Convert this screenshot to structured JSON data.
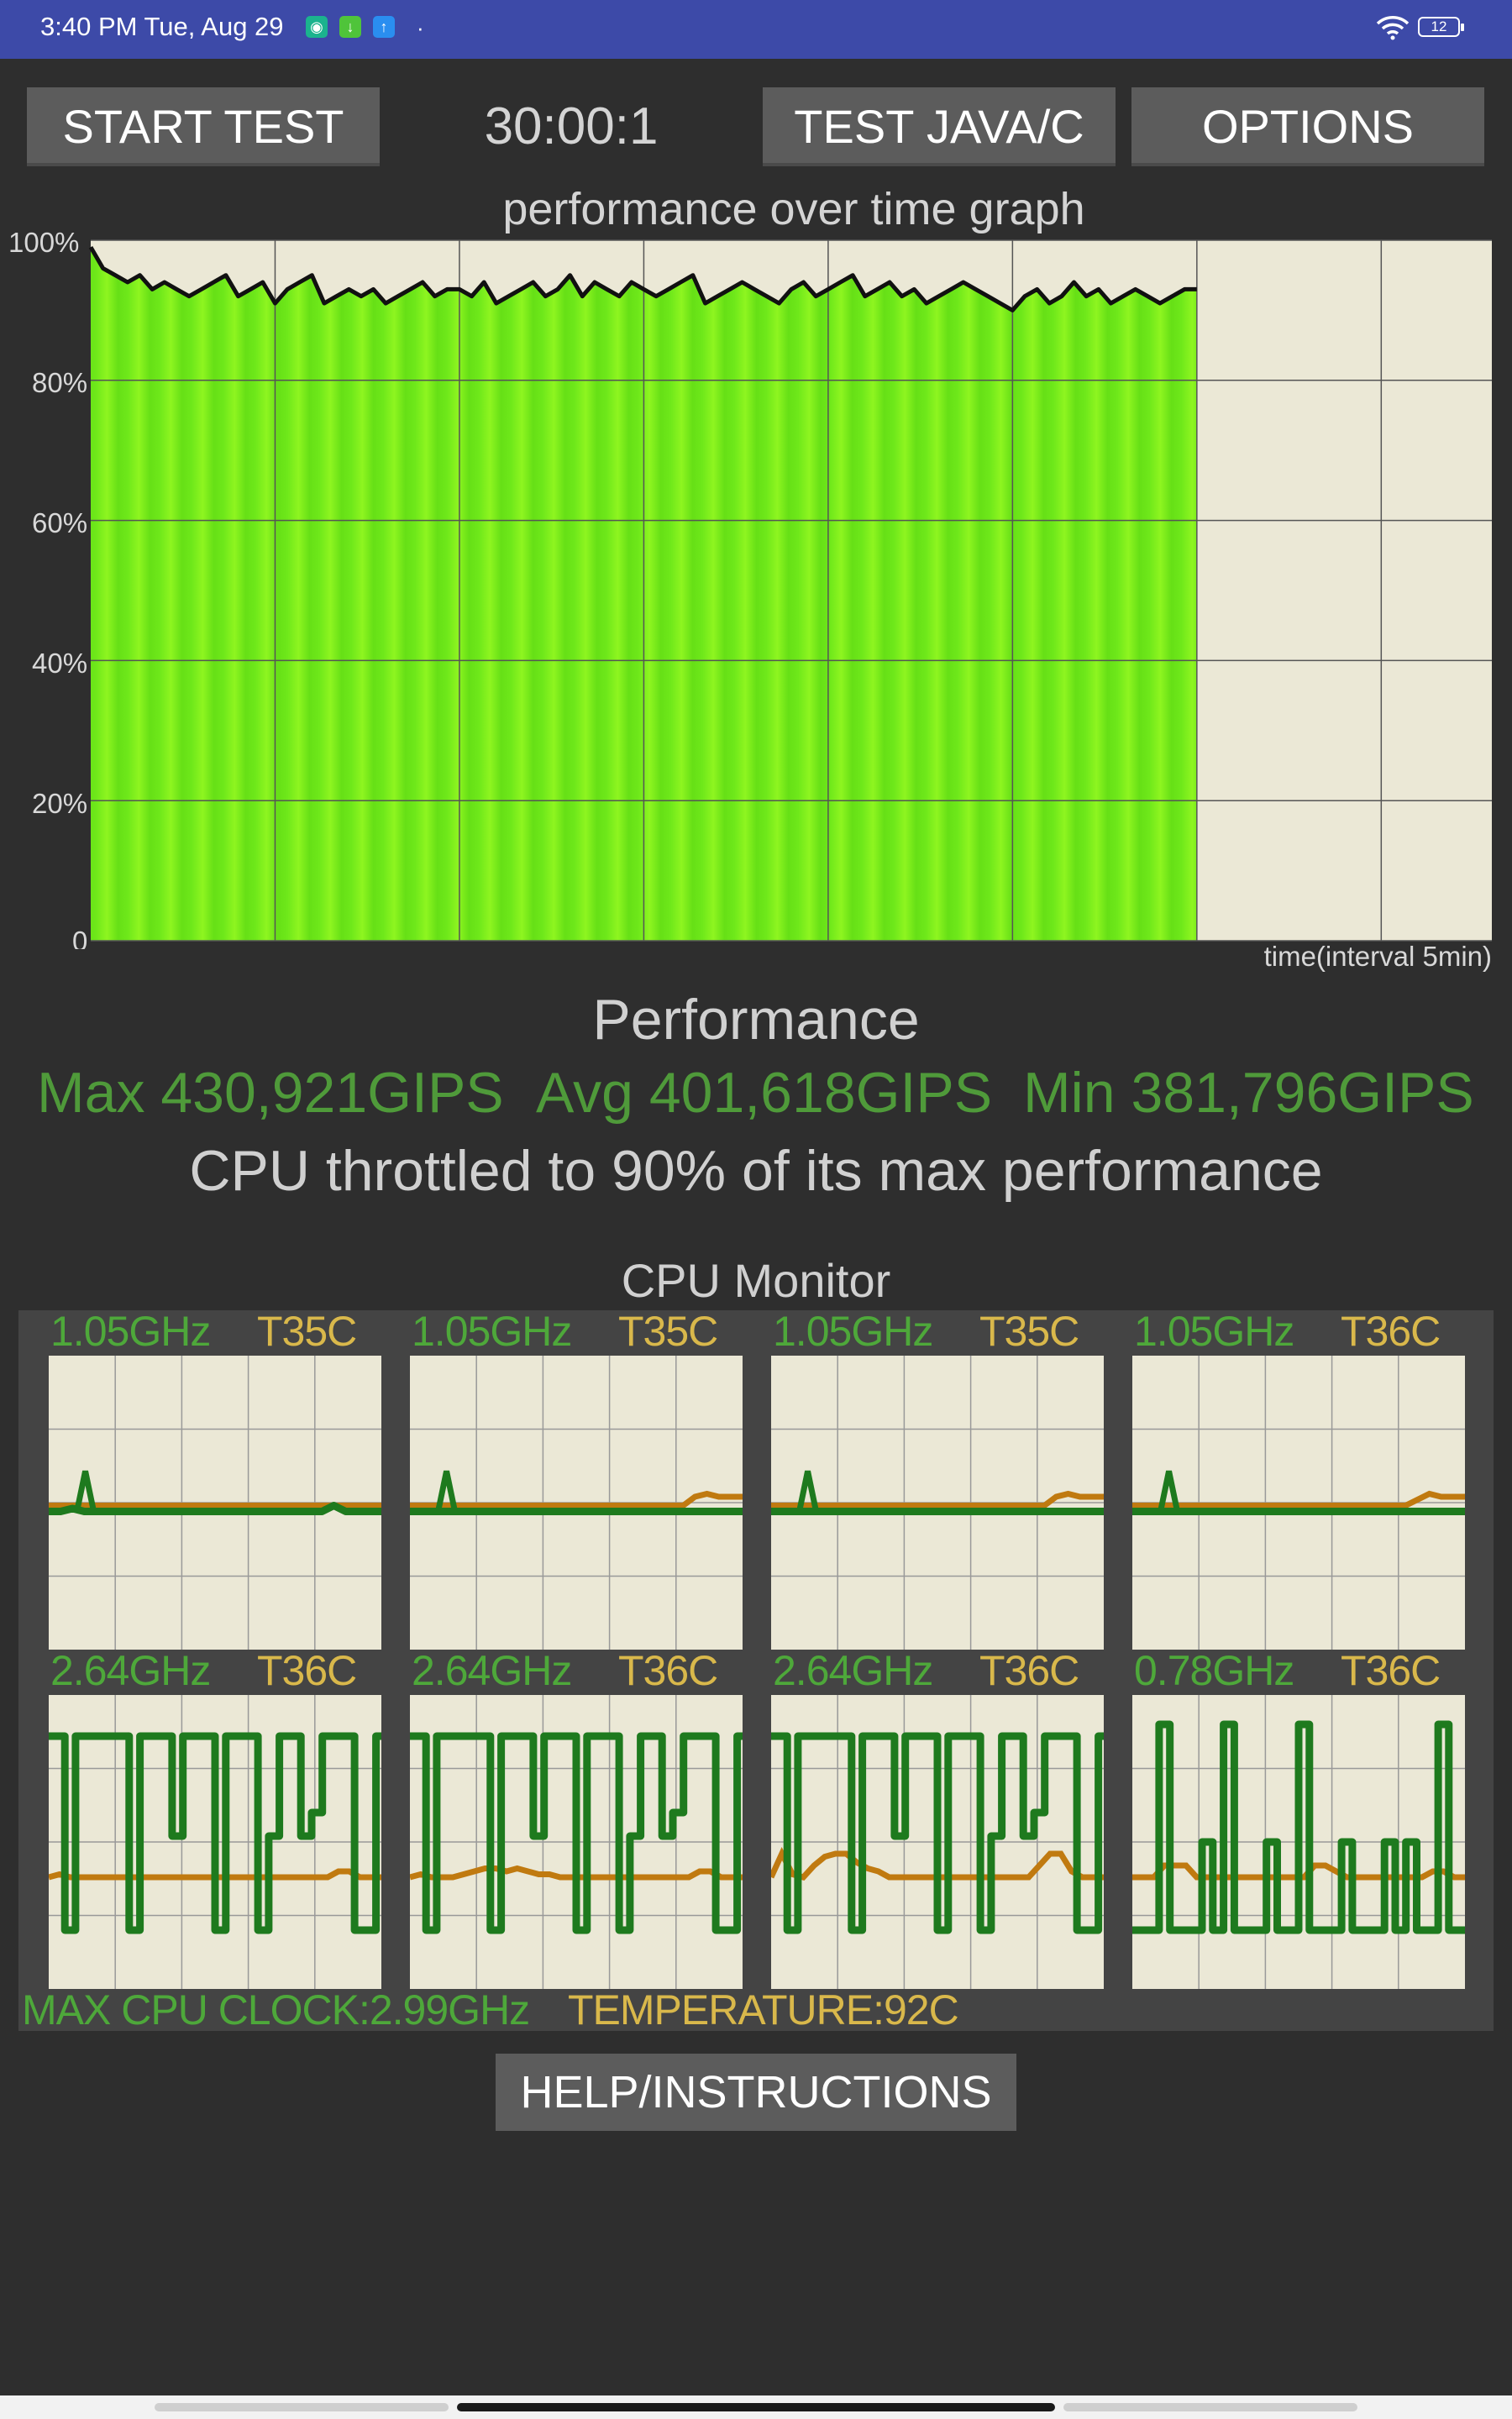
{
  "status_bar": {
    "time": "3:40 PM Tue, Aug 29",
    "dot": "·",
    "battery": "12",
    "icons": [
      "shield-app-icon",
      "download-app-icon",
      "upload-app-icon",
      "wifi-icon",
      "battery-icon"
    ]
  },
  "toolbar": {
    "start_label": "START TEST",
    "timer": "30:00:1",
    "test_label": "TEST JAVA/C",
    "options_label": "OPTIONS"
  },
  "graph": {
    "title": "performance over time graph",
    "x_label": "time(interval 5min)",
    "y_ticks": [
      "100%",
      "80%",
      "60%",
      "40%",
      "20%",
      "0"
    ]
  },
  "chart_data": {
    "type": "area",
    "title": "performance over time graph",
    "xlabel": "time(interval 5min)",
    "ylabel": "",
    "ylim": [
      0,
      100
    ],
    "y_ticks": [
      0,
      20,
      40,
      60,
      80,
      100
    ],
    "x_unit_minutes": 5,
    "x_range_intervals": [
      0,
      7.6
    ],
    "grid": true,
    "fill_color": "#7cf21a",
    "line_color": "#111111",
    "series": [
      {
        "values": [
          99,
          96,
          95,
          94,
          95,
          93,
          94,
          93,
          92,
          93,
          94,
          95,
          92,
          93,
          94,
          91,
          93,
          94,
          95,
          91,
          92,
          93,
          92,
          93,
          91,
          92,
          93,
          94,
          92,
          93,
          93,
          92,
          94,
          91,
          92,
          93,
          94,
          92,
          93,
          95,
          92,
          94,
          93,
          92,
          94,
          93,
          92,
          93,
          94,
          95,
          91,
          92,
          93,
          94,
          93,
          92,
          91,
          93,
          94,
          92,
          93,
          94,
          95,
          92,
          93,
          94,
          92,
          93,
          91,
          92,
          93,
          94,
          93,
          92,
          91,
          90,
          92,
          93,
          91,
          92,
          94,
          92,
          93,
          91,
          92,
          93,
          92,
          91,
          92,
          93,
          93
        ]
      }
    ]
  },
  "performance": {
    "heading": "Performance",
    "max": "Max 430,921GIPS",
    "avg": "Avg 401,618GIPS",
    "min": "Min 381,796GIPS",
    "throttle": "CPU throttled to 90% of its max performance"
  },
  "cpu_monitor": {
    "title": "CPU Monitor",
    "freq_color": "#1e7a1e",
    "temp_color": "#c07a10",
    "cores": [
      {
        "freq": "1.05GHz",
        "temp": "T35C",
        "freq_trace": [
          0.47,
          0.47,
          0.48,
          0.47,
          0.47,
          0.47,
          0.47,
          0.47,
          0.47,
          0.47,
          0.47,
          0.47,
          0.47,
          0.47,
          0.47,
          0.47,
          0.47,
          0.47,
          0.47,
          0.47,
          0.47,
          0.47,
          0.47,
          0.47,
          0.49,
          0.47,
          0.47,
          0.47,
          0.47
        ],
        "temp_trace": [
          0.49,
          0.49,
          0.49,
          0.49,
          0.49,
          0.49,
          0.49,
          0.49,
          0.49,
          0.49,
          0.49,
          0.49,
          0.49,
          0.49,
          0.49,
          0.49,
          0.49,
          0.49,
          0.49,
          0.49,
          0.49,
          0.49,
          0.49,
          0.49,
          0.49,
          0.49,
          0.49,
          0.49,
          0.49
        ],
        "spike_at": 0.11
      },
      {
        "freq": "1.05GHz",
        "temp": "T35C",
        "freq_trace": [
          0.47,
          0.47,
          0.47,
          0.47,
          0.47,
          0.47,
          0.47,
          0.47,
          0.47,
          0.47,
          0.47,
          0.47,
          0.47,
          0.47,
          0.47,
          0.47,
          0.47,
          0.47,
          0.47,
          0.47,
          0.47,
          0.47,
          0.47,
          0.47,
          0.47,
          0.47,
          0.47,
          0.47,
          0.47
        ],
        "temp_trace": [
          0.49,
          0.49,
          0.49,
          0.49,
          0.49,
          0.49,
          0.49,
          0.49,
          0.49,
          0.49,
          0.49,
          0.49,
          0.49,
          0.49,
          0.49,
          0.49,
          0.49,
          0.49,
          0.49,
          0.49,
          0.49,
          0.49,
          0.49,
          0.49,
          0.52,
          0.53,
          0.52,
          0.52,
          0.52
        ],
        "spike_at": 0.11
      },
      {
        "freq": "1.05GHz",
        "temp": "T35C",
        "freq_trace": [
          0.47,
          0.47,
          0.47,
          0.47,
          0.47,
          0.47,
          0.47,
          0.47,
          0.47,
          0.47,
          0.47,
          0.47,
          0.47,
          0.47,
          0.47,
          0.47,
          0.47,
          0.47,
          0.47,
          0.47,
          0.47,
          0.47,
          0.47,
          0.47,
          0.47,
          0.47,
          0.47,
          0.47,
          0.47
        ],
        "temp_trace": [
          0.49,
          0.49,
          0.49,
          0.49,
          0.49,
          0.49,
          0.49,
          0.49,
          0.49,
          0.49,
          0.49,
          0.49,
          0.49,
          0.49,
          0.49,
          0.49,
          0.49,
          0.49,
          0.49,
          0.49,
          0.49,
          0.49,
          0.49,
          0.49,
          0.52,
          0.53,
          0.52,
          0.52,
          0.52
        ],
        "spike_at": 0.11
      },
      {
        "freq": "1.05GHz",
        "temp": "T36C",
        "freq_trace": [
          0.47,
          0.47,
          0.47,
          0.47,
          0.47,
          0.47,
          0.47,
          0.47,
          0.47,
          0.47,
          0.47,
          0.47,
          0.47,
          0.47,
          0.47,
          0.47,
          0.47,
          0.47,
          0.47,
          0.47,
          0.47,
          0.47,
          0.47,
          0.47,
          0.47,
          0.47,
          0.47,
          0.47,
          0.47
        ],
        "temp_trace": [
          0.49,
          0.49,
          0.49,
          0.49,
          0.49,
          0.49,
          0.49,
          0.49,
          0.49,
          0.49,
          0.49,
          0.49,
          0.49,
          0.49,
          0.49,
          0.49,
          0.49,
          0.49,
          0.49,
          0.49,
          0.49,
          0.49,
          0.49,
          0.49,
          0.51,
          0.53,
          0.52,
          0.52,
          0.52
        ],
        "spike_at": 0.11
      },
      {
        "freq": "2.64GHz",
        "temp": "T36C",
        "freq_trace": [
          0.86,
          0.86,
          0.2,
          0.86,
          0.86,
          0.86,
          0.86,
          0.86,
          0.2,
          0.86,
          0.86,
          0.86,
          0.52,
          0.86,
          0.86,
          0.86,
          0.2,
          0.86,
          0.86,
          0.86,
          0.2,
          0.52,
          0.86,
          0.86,
          0.52,
          0.6,
          0.86,
          0.86,
          0.86,
          0.2,
          0.2,
          0.86
        ],
        "temp_trace": [
          0.38,
          0.39,
          0.38,
          0.38,
          0.38,
          0.38,
          0.38,
          0.38,
          0.38,
          0.38,
          0.38,
          0.38,
          0.38,
          0.38,
          0.38,
          0.38,
          0.38,
          0.38,
          0.38,
          0.38,
          0.38,
          0.38,
          0.38,
          0.38,
          0.38,
          0.38,
          0.38,
          0.4,
          0.4,
          0.38,
          0.38,
          0.38
        ]
      },
      {
        "freq": "2.64GHz",
        "temp": "T36C",
        "freq_trace": [
          0.86,
          0.86,
          0.2,
          0.86,
          0.86,
          0.86,
          0.86,
          0.86,
          0.2,
          0.86,
          0.86,
          0.86,
          0.52,
          0.86,
          0.86,
          0.86,
          0.2,
          0.86,
          0.86,
          0.86,
          0.2,
          0.52,
          0.86,
          0.86,
          0.52,
          0.6,
          0.86,
          0.86,
          0.86,
          0.2,
          0.2,
          0.86
        ],
        "temp_trace": [
          0.38,
          0.39,
          0.38,
          0.38,
          0.38,
          0.39,
          0.4,
          0.41,
          0.41,
          0.4,
          0.41,
          0.4,
          0.39,
          0.39,
          0.38,
          0.38,
          0.38,
          0.38,
          0.38,
          0.38,
          0.38,
          0.38,
          0.38,
          0.38,
          0.38,
          0.38,
          0.38,
          0.4,
          0.4,
          0.38,
          0.38,
          0.38
        ]
      },
      {
        "freq": "2.64GHz",
        "temp": "T36C",
        "freq_trace": [
          0.86,
          0.86,
          0.2,
          0.86,
          0.86,
          0.86,
          0.86,
          0.86,
          0.2,
          0.86,
          0.86,
          0.86,
          0.52,
          0.86,
          0.86,
          0.86,
          0.2,
          0.86,
          0.86,
          0.86,
          0.2,
          0.52,
          0.86,
          0.86,
          0.52,
          0.6,
          0.86,
          0.86,
          0.86,
          0.2,
          0.2,
          0.86
        ],
        "temp_trace": [
          0.38,
          0.46,
          0.39,
          0.38,
          0.42,
          0.45,
          0.46,
          0.46,
          0.43,
          0.41,
          0.4,
          0.38,
          0.38,
          0.38,
          0.38,
          0.38,
          0.38,
          0.38,
          0.38,
          0.38,
          0.38,
          0.38,
          0.38,
          0.38,
          0.38,
          0.42,
          0.46,
          0.46,
          0.4,
          0.38,
          0.38,
          0.38
        ]
      },
      {
        "freq": "0.78GHz",
        "temp": "T36C",
        "freq_trace": [
          0.2,
          0.2,
          0.2,
          0.9,
          0.2,
          0.2,
          0.2,
          0.5,
          0.2,
          0.9,
          0.2,
          0.2,
          0.2,
          0.5,
          0.2,
          0.2,
          0.9,
          0.2,
          0.2,
          0.2,
          0.5,
          0.2,
          0.2,
          0.2,
          0.5,
          0.2,
          0.5,
          0.2,
          0.2,
          0.9,
          0.2,
          0.2
        ],
        "temp_trace": [
          0.38,
          0.38,
          0.38,
          0.42,
          0.42,
          0.42,
          0.38,
          0.38,
          0.38,
          0.38,
          0.38,
          0.38,
          0.38,
          0.38,
          0.38,
          0.38,
          0.38,
          0.42,
          0.42,
          0.4,
          0.38,
          0.38,
          0.38,
          0.38,
          0.38,
          0.38,
          0.38,
          0.38,
          0.4,
          0.4,
          0.38,
          0.38
        ]
      }
    ],
    "max_clock": "MAX CPU CLOCK:2.99GHz",
    "max_temp": "TEMPERATURE:92C"
  },
  "help_label": "HELP/INSTRUCTIONS"
}
